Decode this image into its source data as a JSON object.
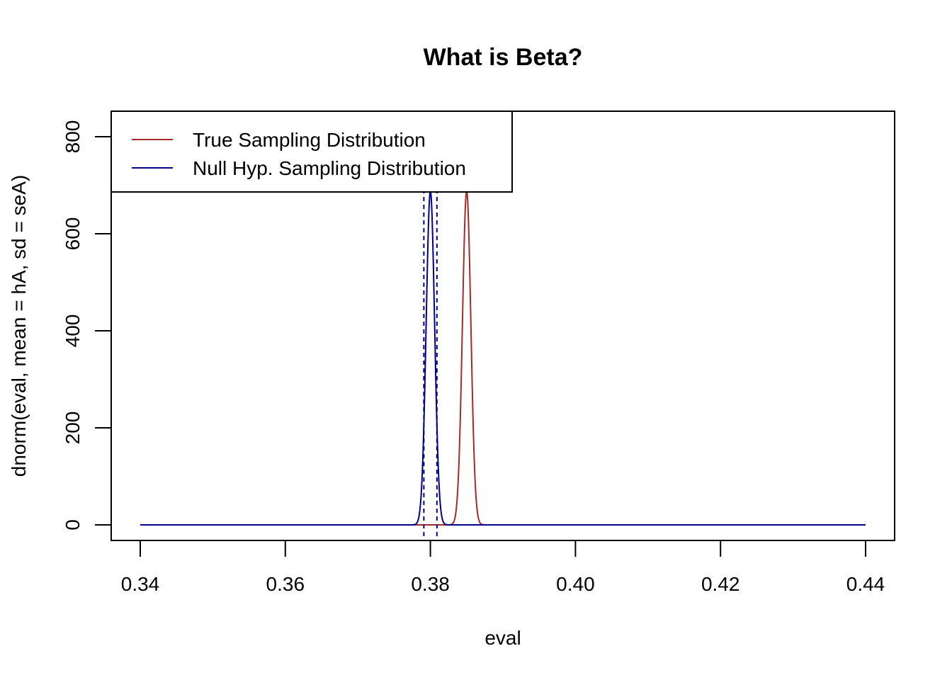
{
  "chart_data": {
    "type": "line",
    "title": "What is Beta?",
    "xlabel": "eval",
    "ylabel": "dnorm(eval, mean = hA, sd = seA)",
    "xlim": [
      0.34,
      0.44
    ],
    "ylim": [
      0,
      800
    ],
    "x_ticks": [
      0.34,
      0.36,
      0.38,
      0.4,
      0.42,
      0.44
    ],
    "x_tick_labels": [
      "0.34",
      "0.36",
      "0.38",
      "0.40",
      "0.42",
      "0.44"
    ],
    "y_ticks": [
      0,
      200,
      400,
      600,
      800
    ],
    "y_tick_labels": [
      "0",
      "200",
      "400",
      "600",
      "800"
    ],
    "grid": false,
    "legend_position": "top-left",
    "series": [
      {
        "name": "True Sampling Distribution",
        "distribution": "normal",
        "mean": 0.385,
        "sd": 0.00058,
        "color": "#a52a2a"
      },
      {
        "name": "Null Hyp. Sampling Distribution",
        "distribution": "normal",
        "mean": 0.38,
        "sd": 0.00058,
        "color": "#00008b"
      }
    ],
    "vlines": [
      {
        "x": 0.3791,
        "style": "dashed",
        "color": "#00008b"
      },
      {
        "x": 0.3809,
        "style": "dashed",
        "color": "#00008b"
      }
    ]
  }
}
